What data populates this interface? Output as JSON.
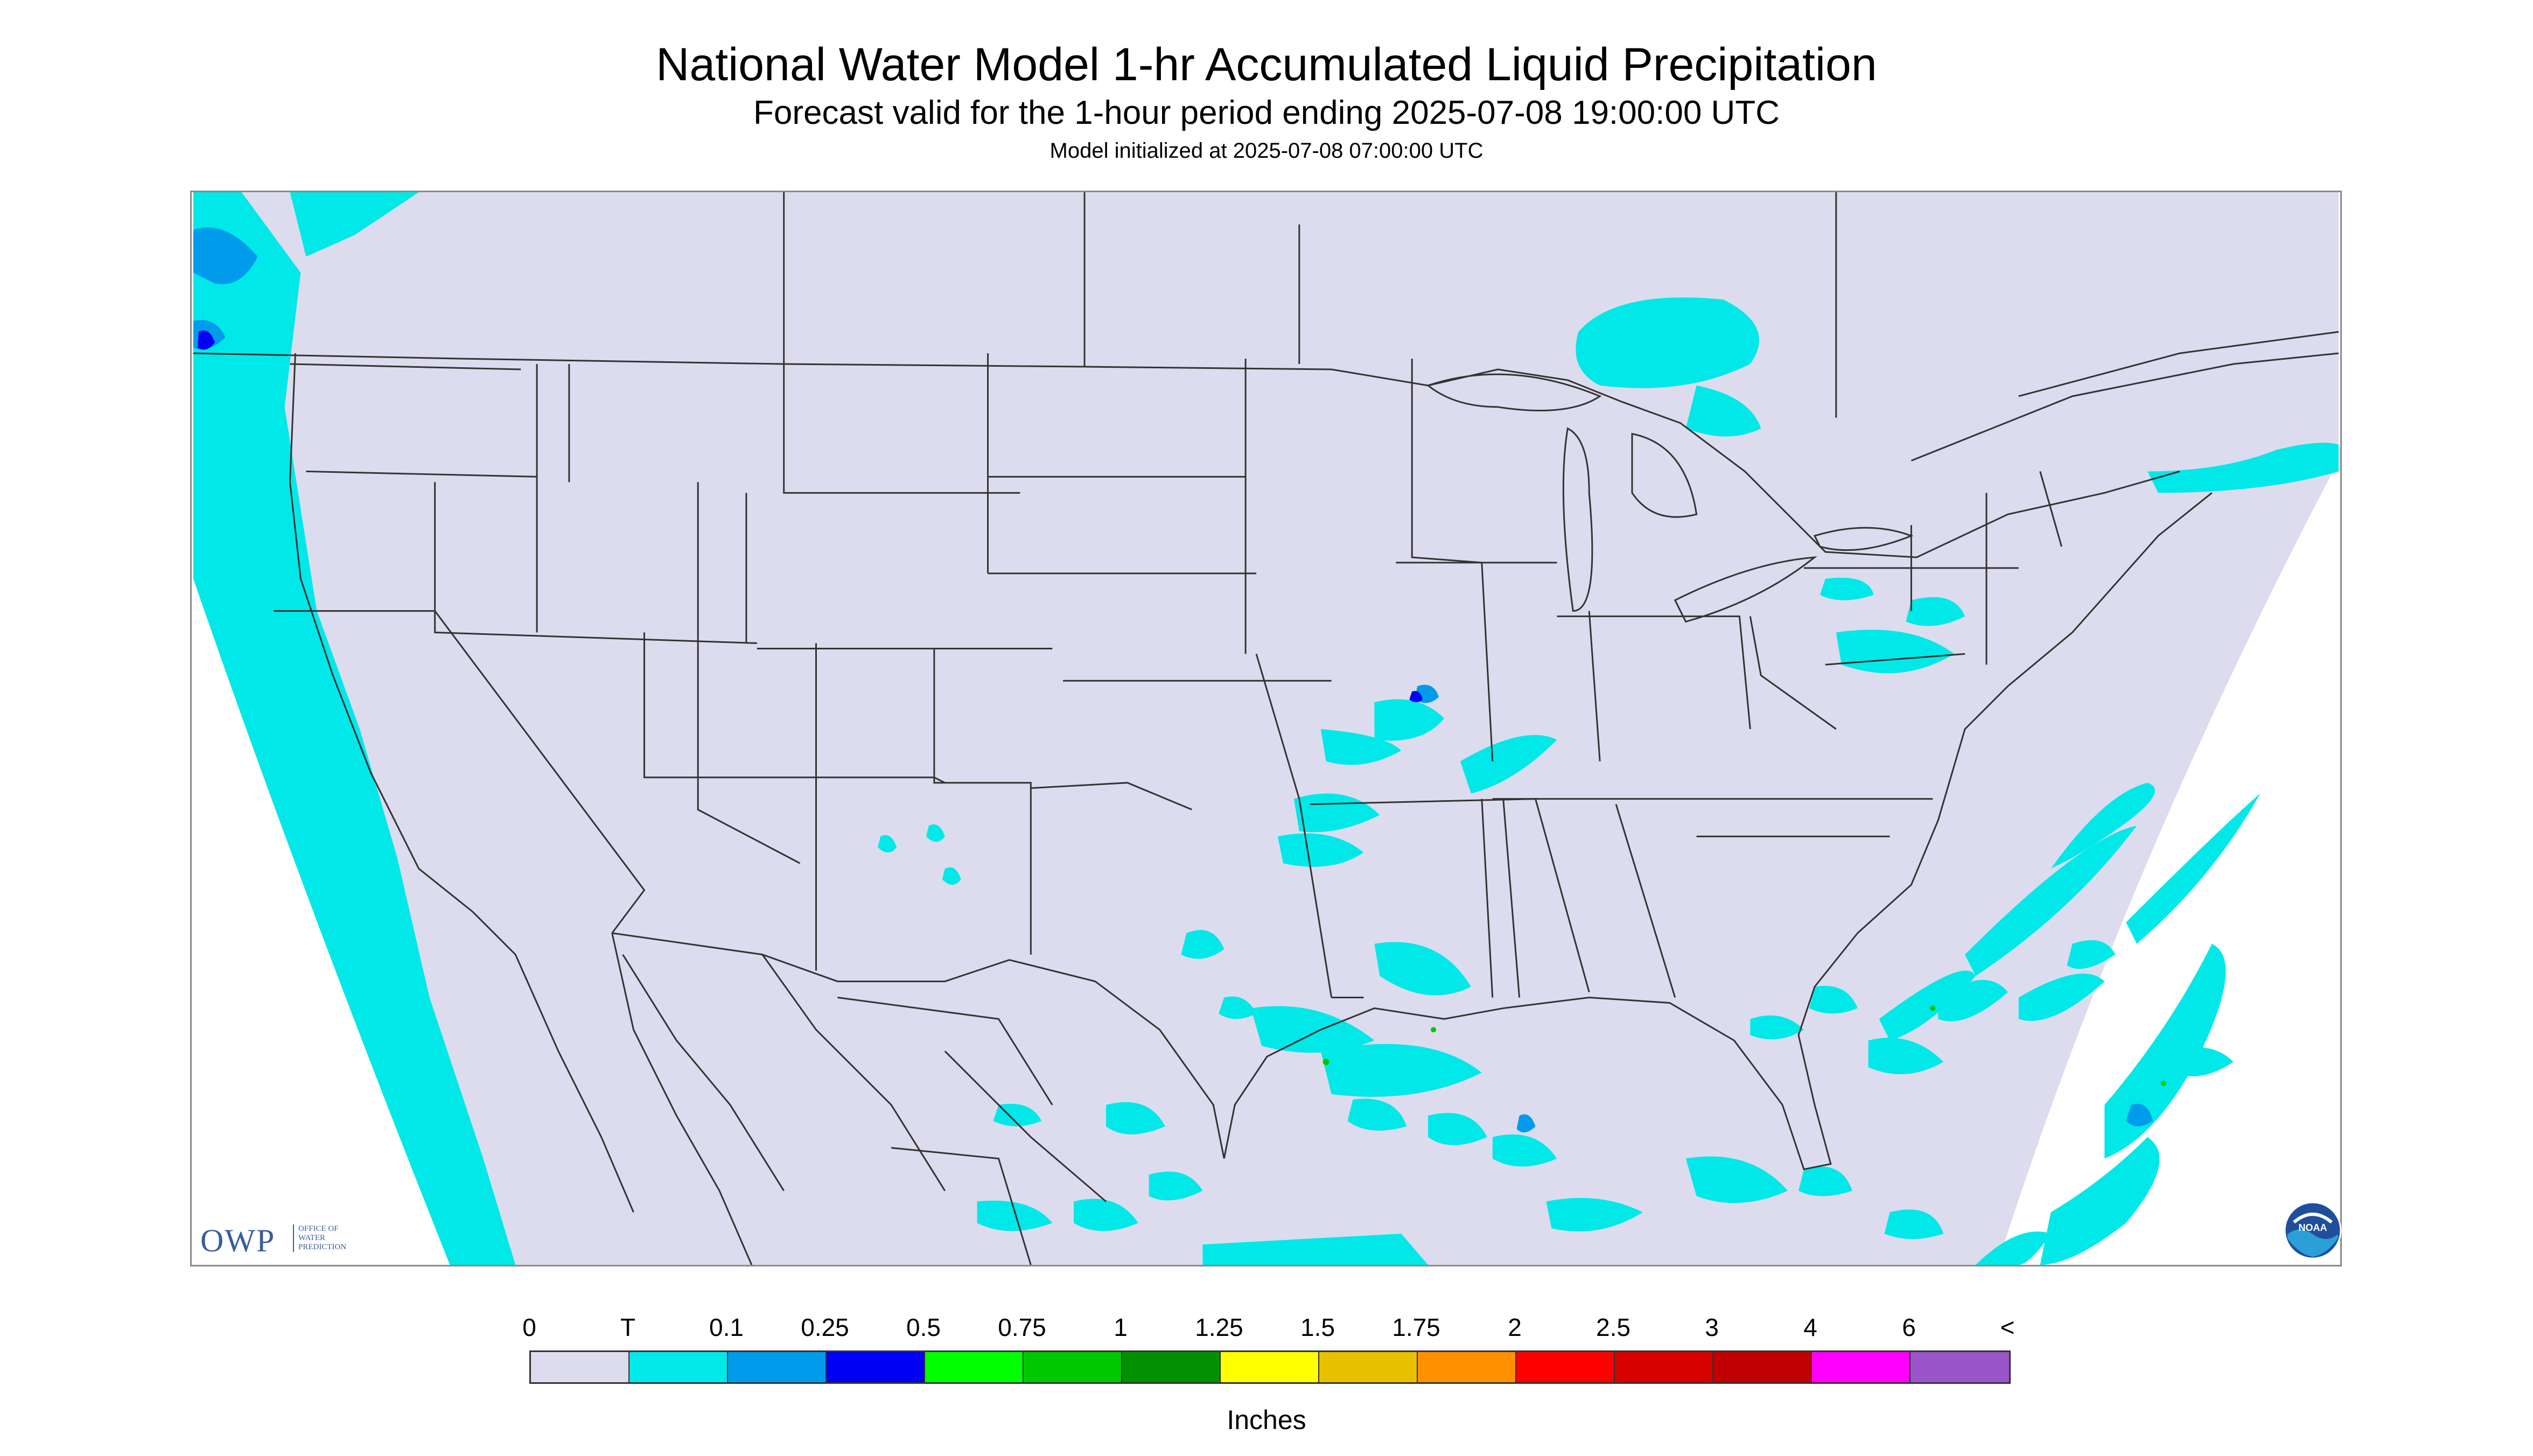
{
  "header": {
    "title": "National Water Model 1-hr Accumulated Liquid Precipitation",
    "subtitle": "Forecast valid for the 1-hour period ending 2025-07-08 19:00:00 UTC",
    "init": "Model initialized at 2025-07-08 07:00:00 UTC"
  },
  "logos": {
    "owp_big": "OWP",
    "owp_small_1": "OFFICE OF",
    "owp_small_2": "WATER",
    "owp_small_3": "PREDICTION",
    "noaa": "NOAA"
  },
  "colors": {
    "background_domain": "#dcdcee",
    "outside_domain": "#ffffff",
    "boundary_lines": "#333333"
  },
  "legend": {
    "labels": [
      "0",
      "T",
      "0.1",
      "0.25",
      "0.5",
      "0.75",
      "1",
      "1.25",
      "1.5",
      "1.75",
      "2",
      "2.5",
      "3",
      "4",
      "6",
      "<"
    ],
    "swatches": [
      "#dcdcee",
      "#00e8e8",
      "#009ceb",
      "#0000f6",
      "#00ff00",
      "#00c800",
      "#009000",
      "#ffff00",
      "#e7c000",
      "#ff9000",
      "#ff0000",
      "#d60000",
      "#c00000",
      "#ff00ff",
      "#9955c9"
    ],
    "units": "Inches"
  }
}
